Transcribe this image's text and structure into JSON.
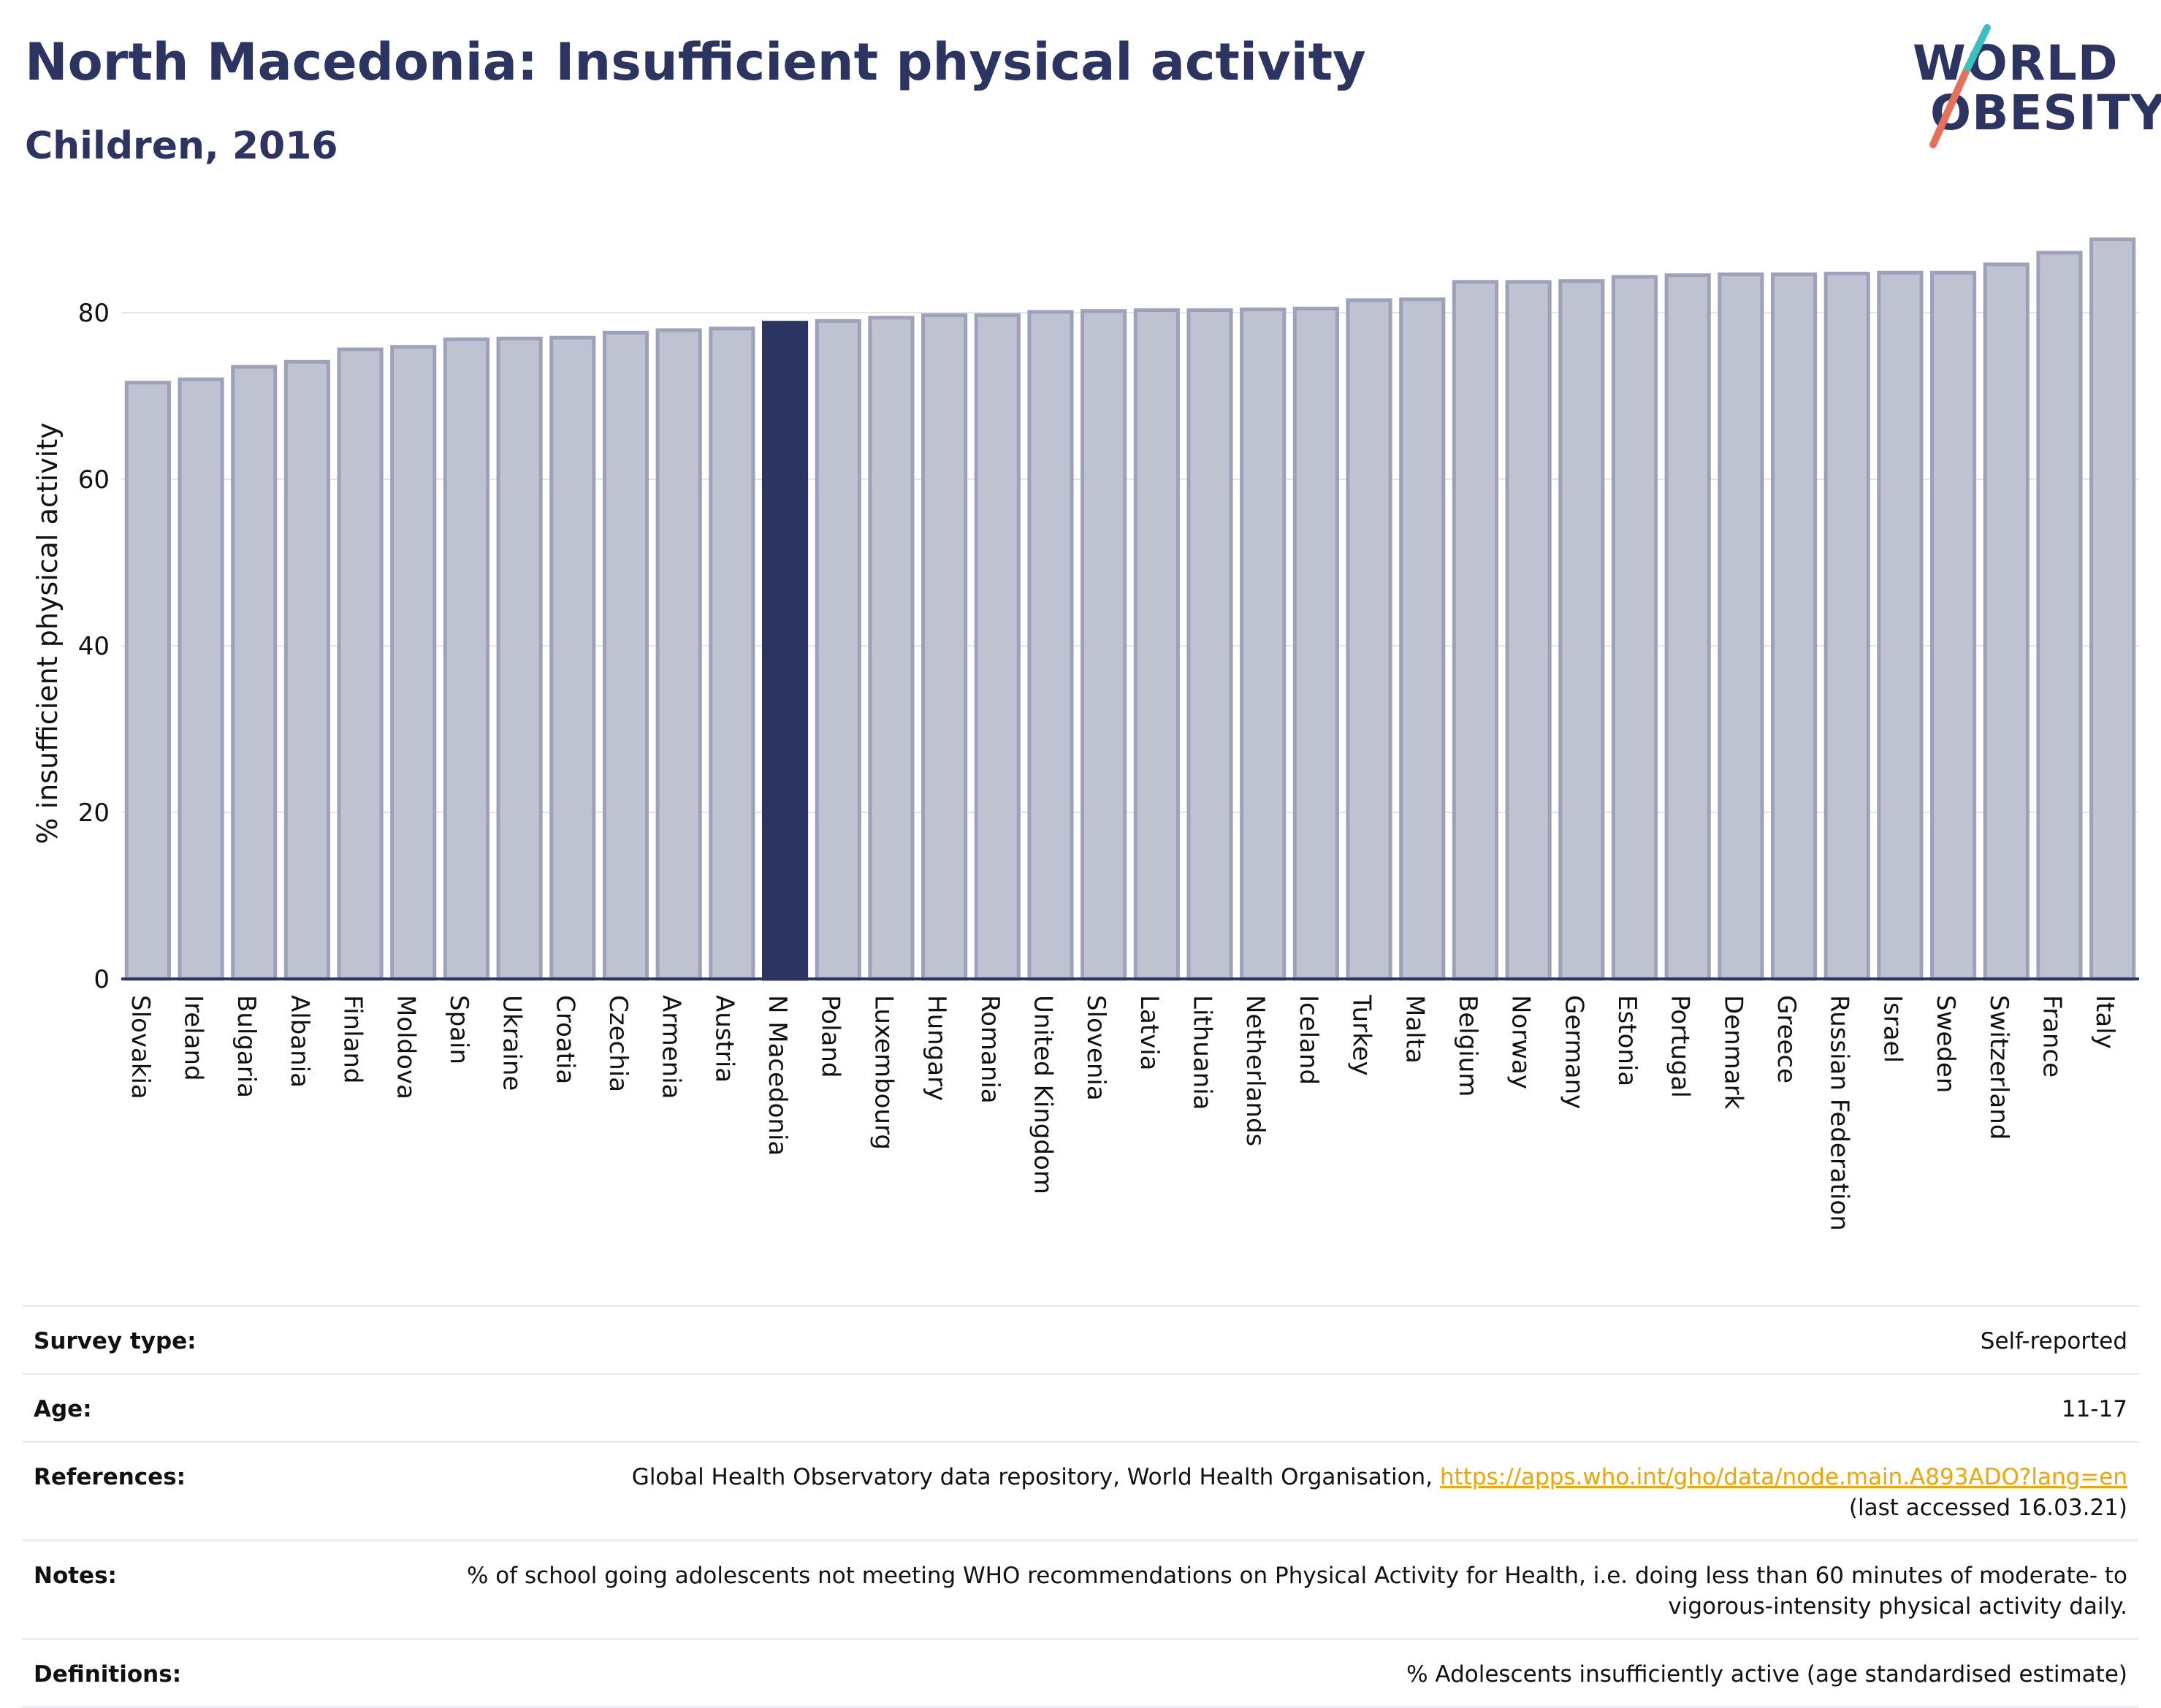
{
  "header": {
    "title": "North Macedonia: Insufficient physical activity",
    "subtitle": "Children, 2016"
  },
  "logo": {
    "line1": "WORLD",
    "line2": "OBESITY",
    "colors": {
      "text": "#2c3561",
      "slash_top": "#3bbfbf",
      "slash_bottom": "#e8705a"
    }
  },
  "colors": {
    "bar_default": "#bfc2d0",
    "bar_border": "#9da2ba",
    "bar_highlight": "#2c3561",
    "axis": "#2c3561",
    "grid": "#e3e5ee"
  },
  "chart_data": {
    "type": "bar",
    "title": "North Macedonia: Insufficient physical activity",
    "subtitle": "Children, 2016",
    "xlabel": "",
    "ylabel": "% insufficient physical activity",
    "ylim": [
      0,
      90
    ],
    "yticks": [
      0,
      20,
      40,
      60,
      80
    ],
    "grid": true,
    "highlight": "N Macedonia",
    "categories": [
      "Slovakia",
      "Ireland",
      "Bulgaria",
      "Albania",
      "Finland",
      "Moldova",
      "Spain",
      "Ukraine",
      "Croatia",
      "Czechia",
      "Armenia",
      "Austria",
      "N Macedonia",
      "Poland",
      "Luxembourg",
      "Hungary",
      "Romania",
      "United Kingdom",
      "Slovenia",
      "Latvia",
      "Lithuania",
      "Netherlands",
      "Iceland",
      "Turkey",
      "Malta",
      "Belgium",
      "Norway",
      "Germany",
      "Estonia",
      "Portugal",
      "Denmark",
      "Greece",
      "Russian Federation",
      "Israel",
      "Sweden",
      "Switzerland",
      "France",
      "Italy"
    ],
    "values": [
      71.6,
      72.0,
      73.5,
      74.1,
      75.6,
      75.9,
      76.8,
      76.9,
      77.0,
      77.6,
      77.9,
      78.1,
      78.8,
      79.0,
      79.4,
      79.7,
      79.7,
      80.1,
      80.2,
      80.3,
      80.3,
      80.4,
      80.5,
      81.5,
      81.6,
      83.7,
      83.7,
      83.8,
      84.3,
      84.5,
      84.6,
      84.6,
      84.7,
      84.8,
      84.8,
      85.8,
      87.2,
      88.8
    ]
  },
  "info": {
    "survey_type": {
      "label": "Survey type:",
      "value": "Self-reported"
    },
    "age": {
      "label": "Age:",
      "value": "11-17"
    },
    "references": {
      "label": "References:",
      "text": "Global Health Observatory data repository, World Health Organisation, ",
      "link": "https://apps.who.int/gho/data/node.main.A893ADO?lang=en",
      "accessed": "(last accessed 16.03.21)"
    },
    "notes": {
      "label": "Notes:",
      "value": "% of school going adolescents not meeting WHO recommendations on Physical Activity for Health, i.e. doing less than 60 minutes of moderate- to vigorous-intensity physical activity daily."
    },
    "definitions": {
      "label": "Definitions:",
      "value": "% Adolescents insufficiently active (age standardised estimate)"
    }
  }
}
